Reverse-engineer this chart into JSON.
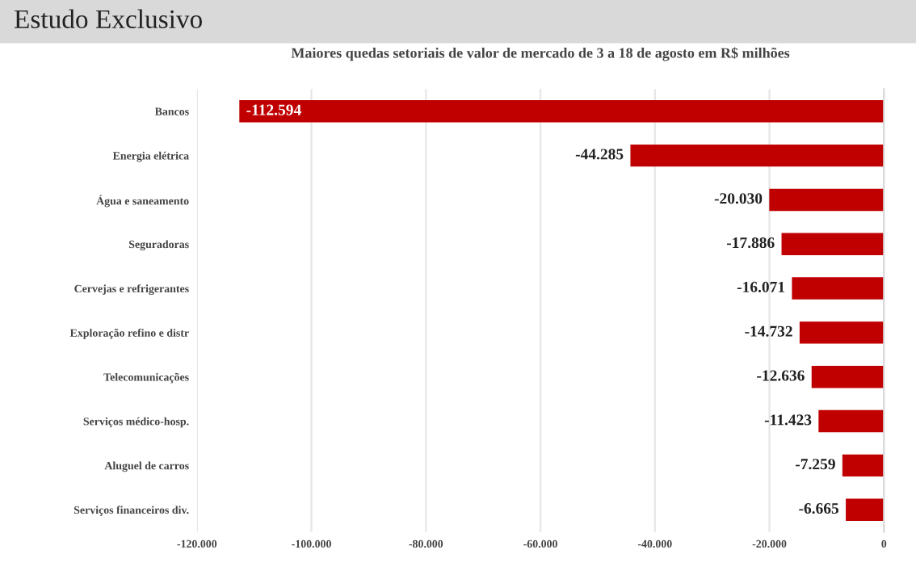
{
  "chart_data": {
    "type": "bar",
    "orientation": "horizontal",
    "title": "Maiores quedas setoriais de valor de mercado de 3 a 18 de agosto em R$ milhões",
    "annotations": [
      "Estudo Exclusivo"
    ],
    "categories": [
      "Bancos",
      "Energia elétrica",
      "Água e saneamento",
      "Seguradoras",
      "Cervejas e refrigerantes",
      "Exploração refino e distr",
      "Telecomunicações",
      "Serviços médico-hosp.",
      "Aluguel de carros",
      "Serviços financeiros div."
    ],
    "values": [
      -112594,
      -44285,
      -20030,
      -17886,
      -16071,
      -14732,
      -12636,
      -11423,
      -7259,
      -6665
    ],
    "value_labels": [
      "-112.594",
      "-44.285",
      "-20.030",
      "-17.886",
      "-16.071",
      "-14.732",
      "-12.636",
      "-11.423",
      "-7.259",
      "-6.665"
    ],
    "color": "#c00000",
    "xlim": [
      -120000,
      0
    ],
    "xticks": [
      {
        "value": -120000,
        "label": "-120.000"
      },
      {
        "value": -100000,
        "label": "-100.000"
      },
      {
        "value": -80000,
        "label": "-80.000"
      },
      {
        "value": -60000,
        "label": "-60.000"
      },
      {
        "value": -40000,
        "label": "-40.000"
      },
      {
        "value": -20000,
        "label": "-20.000"
      },
      0
    ],
    "grid": "x",
    "legend": false
  }
}
